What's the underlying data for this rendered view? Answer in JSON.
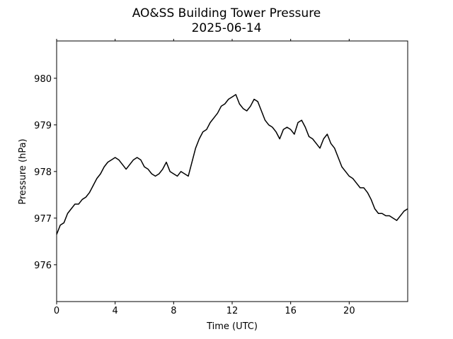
{
  "chart_data": {
    "type": "line",
    "title": "AO&SS Building Tower Pressure",
    "subtitle": "2025-06-14",
    "x_label": "Time (UTC)",
    "y_label": "Pressure (hPa)",
    "xlim": [
      0,
      24
    ],
    "xticks": [
      0,
      4,
      8,
      12,
      16,
      20
    ],
    "ylim": [
      975.21,
      980.8
    ],
    "yticks": [
      976,
      977,
      978,
      979,
      980
    ],
    "x": [
      0,
      0.25,
      0.5,
      0.75,
      1,
      1.25,
      1.5,
      1.75,
      2,
      2.25,
      2.5,
      2.75,
      3,
      3.25,
      3.5,
      3.75,
      4,
      4.25,
      4.5,
      4.75,
      5,
      5.25,
      5.5,
      5.75,
      6,
      6.25,
      6.5,
      6.75,
      7,
      7.25,
      7.5,
      7.75,
      8,
      8.25,
      8.5,
      8.75,
      9,
      9.25,
      9.5,
      9.75,
      10,
      10.25,
      10.5,
      10.75,
      11,
      11.25,
      11.5,
      11.75,
      12,
      12.25,
      12.5,
      12.75,
      13,
      13.25,
      13.5,
      13.75,
      14,
      14.25,
      14.5,
      14.75,
      15,
      15.25,
      15.5,
      15.75,
      16,
      16.25,
      16.5,
      16.75,
      17,
      17.25,
      17.5,
      17.75,
      18,
      18.25,
      18.5,
      18.75,
      19,
      19.25,
      19.5,
      19.75,
      20,
      20.25,
      20.5,
      20.75,
      21,
      21.25,
      21.5,
      21.75,
      22,
      22.25,
      22.5,
      22.75,
      23,
      23.25,
      23.5,
      23.75,
      24
    ],
    "series": [
      {
        "name": "Pressure",
        "color": "#000000",
        "values": [
          976.65,
          976.85,
          976.9,
          977.1,
          977.2,
          977.3,
          977.3,
          977.4,
          977.45,
          977.55,
          977.7,
          977.85,
          977.95,
          978.1,
          978.2,
          978.25,
          978.3,
          978.25,
          978.15,
          978.05,
          978.15,
          978.25,
          978.3,
          978.25,
          978.1,
          978.05,
          977.95,
          977.9,
          977.95,
          978.05,
          978.2,
          978.0,
          977.95,
          977.9,
          978.0,
          977.95,
          977.9,
          978.2,
          978.5,
          978.7,
          978.85,
          978.9,
          979.05,
          979.15,
          979.25,
          979.4,
          979.45,
          979.55,
          979.6,
          979.65,
          979.45,
          979.35,
          979.3,
          979.4,
          979.55,
          979.5,
          979.3,
          979.1,
          979.0,
          978.95,
          978.85,
          978.7,
          978.9,
          978.95,
          978.9,
          978.8,
          979.05,
          979.1,
          978.95,
          978.75,
          978.7,
          978.6,
          978.5,
          978.7,
          978.8,
          978.6,
          978.5,
          978.3,
          978.1,
          978.0,
          977.9,
          977.85,
          977.75,
          977.65,
          977.65,
          977.55,
          977.4,
          977.2,
          977.1,
          977.1,
          977.05,
          977.05,
          977.0,
          976.95,
          977.05,
          977.15,
          977.2
        ]
      }
    ]
  }
}
